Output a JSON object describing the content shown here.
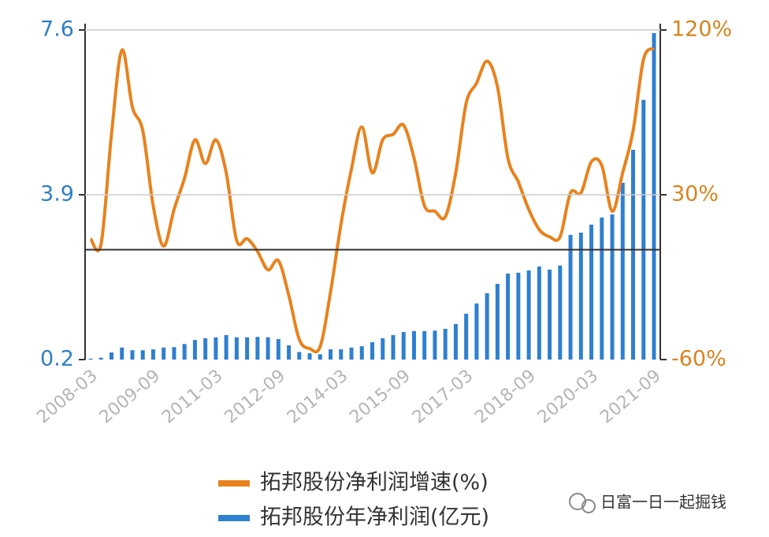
{
  "chart_data": {
    "type": "combo",
    "categories": [
      "2008-03",
      null,
      null,
      null,
      null,
      null,
      "2009-09",
      null,
      null,
      null,
      null,
      null,
      "2011-03",
      null,
      null,
      null,
      null,
      null,
      "2012-09",
      null,
      null,
      null,
      null,
      null,
      "2014-03",
      null,
      null,
      null,
      null,
      null,
      "2015-09",
      null,
      null,
      null,
      null,
      null,
      "2017-03",
      null,
      null,
      null,
      null,
      null,
      "2018-09",
      null,
      null,
      null,
      null,
      null,
      "2020-03",
      null,
      null,
      null,
      null,
      null,
      "2021-09"
    ],
    "series": [
      {
        "name": "拓邦股份净利润增速(%)",
        "type": "line",
        "axis": "y2",
        "color": "#e8821e",
        "values": [
          6,
          3,
          63,
          109,
          78,
          65,
          24,
          2,
          22,
          39,
          60,
          47,
          60,
          42,
          5,
          6,
          -1,
          -11,
          -6,
          -25,
          -49,
          -54,
          -53,
          -23,
          14,
          44,
          67,
          42,
          60,
          63,
          68,
          50,
          24,
          21,
          18,
          42,
          80,
          91,
          103,
          89,
          50,
          37,
          22,
          11,
          7,
          7,
          31,
          31,
          48,
          46,
          21,
          42,
          65,
          104,
          110
        ]
      },
      {
        "name": "拓邦股份年净利润(亿元)",
        "type": "bar",
        "color": "#2f7fd0",
        "values": [
          0.22,
          0.24,
          0.36,
          0.47,
          0.41,
          0.41,
          0.43,
          0.47,
          0.48,
          0.55,
          0.64,
          0.68,
          0.7,
          0.75,
          0.7,
          0.7,
          0.71,
          0.7,
          0.66,
          0.52,
          0.37,
          0.34,
          0.32,
          0.43,
          0.43,
          0.47,
          0.5,
          0.59,
          0.68,
          0.75,
          0.82,
          0.84,
          0.84,
          0.85,
          0.89,
          1.0,
          1.23,
          1.46,
          1.69,
          1.9,
          2.13,
          2.15,
          2.2,
          2.29,
          2.22,
          2.31,
          3.0,
          3.05,
          3.23,
          3.39,
          3.46,
          4.17,
          4.91,
          6.03,
          7.53
        ]
      }
    ],
    "ylim": [
      0.2,
      7.6
    ],
    "yticks": [
      0.2,
      3.9,
      7.6
    ],
    "y2lim": [
      -60,
      120
    ],
    "y2ticks": [
      {
        "value": -60,
        "label": "-60%"
      },
      {
        "value": 30,
        "label": "30%"
      },
      {
        "value": 120,
        "label": "120%"
      }
    ],
    "grid": true,
    "watermark": "日富一日一起掘钱"
  }
}
